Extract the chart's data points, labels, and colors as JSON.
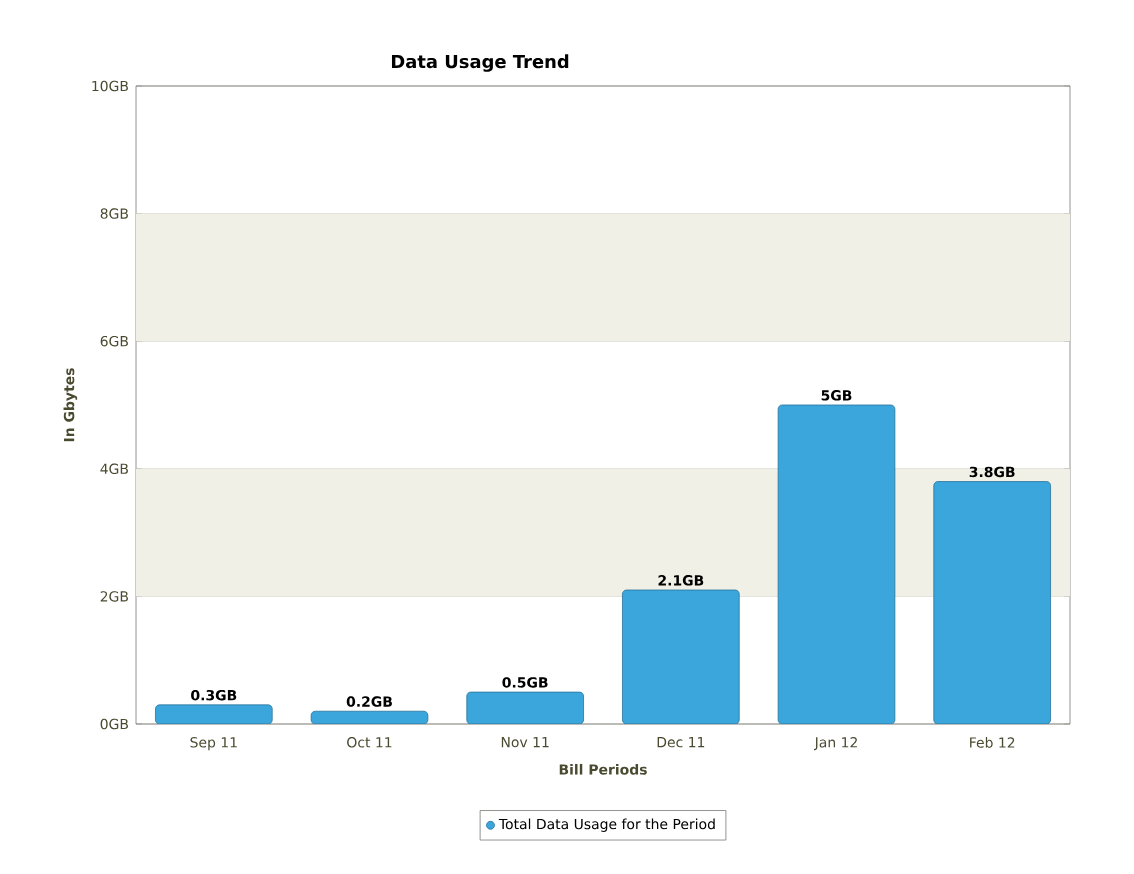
{
  "chart_data": {
    "type": "bar",
    "title": "Data Usage Trend",
    "xlabel": "Bill Periods",
    "ylabel": "In Gbytes",
    "categories": [
      "Sep 11",
      "Oct 11",
      "Nov 11",
      "Dec 11",
      "Jan 12",
      "Feb 12"
    ],
    "series": [
      {
        "name": "Total Data Usage for the Period",
        "color": "#3aa6dc",
        "values": [
          0.3,
          0.2,
          0.5,
          2.1,
          5,
          3.8
        ],
        "value_labels": [
          "0.3GB",
          "0.2GB",
          "0.5GB",
          "2.1GB",
          "5GB",
          "3.8GB"
        ]
      }
    ],
    "ylim": [
      0,
      10
    ],
    "yticks": [
      {
        "value": 0,
        "label": "0GB"
      },
      {
        "value": 2,
        "label": "2GB"
      },
      {
        "value": 4,
        "label": "4GB"
      },
      {
        "value": 6,
        "label": "6GB"
      },
      {
        "value": 8,
        "label": "8GB"
      },
      {
        "value": 10,
        "label": "10GB"
      }
    ],
    "bands": [
      {
        "axis": "y",
        "from": 2,
        "to": 4,
        "color": "#f0f0e6"
      },
      {
        "axis": "y",
        "from": 6,
        "to": 8,
        "color": "#f0f0e6"
      }
    ],
    "grid": "y",
    "legend": "bottom"
  }
}
